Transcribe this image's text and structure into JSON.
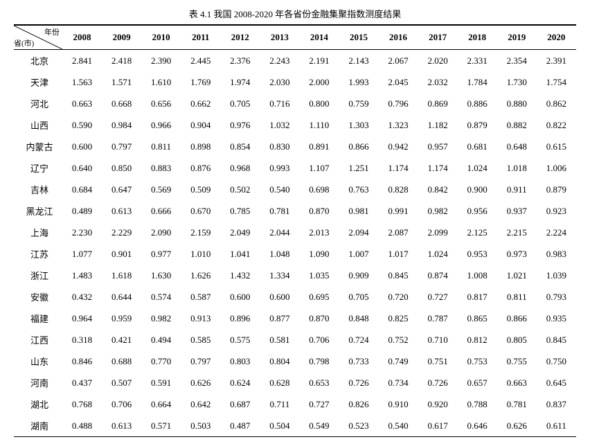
{
  "title": "表 4.1  我国 2008-2020 年各省份金融集聚指数测度结果",
  "corner_top": "年份",
  "corner_bottom": "省(市)",
  "years": [
    "2008",
    "2009",
    "2010",
    "2011",
    "2012",
    "2013",
    "2014",
    "2015",
    "2016",
    "2017",
    "2018",
    "2019",
    "2020"
  ],
  "rows": [
    {
      "label": "北京",
      "v": [
        "2.841",
        "2.418",
        "2.390",
        "2.445",
        "2.376",
        "2.243",
        "2.191",
        "2.143",
        "2.067",
        "2.020",
        "2.331",
        "2.354",
        "2.391"
      ]
    },
    {
      "label": "天津",
      "v": [
        "1.563",
        "1.571",
        "1.610",
        "1.769",
        "1.974",
        "2.030",
        "2.000",
        "1.993",
        "2.045",
        "2.032",
        "1.784",
        "1.730",
        "1.754"
      ]
    },
    {
      "label": "河北",
      "v": [
        "0.663",
        "0.668",
        "0.656",
        "0.662",
        "0.705",
        "0.716",
        "0.800",
        "0.759",
        "0.796",
        "0.869",
        "0.886",
        "0.880",
        "0.862"
      ]
    },
    {
      "label": "山西",
      "v": [
        "0.590",
        "0.984",
        "0.966",
        "0.904",
        "0.976",
        "1.032",
        "1.110",
        "1.303",
        "1.323",
        "1.182",
        "0.879",
        "0.882",
        "0.822"
      ]
    },
    {
      "label": "内蒙古",
      "v": [
        "0.600",
        "0.797",
        "0.811",
        "0.898",
        "0.854",
        "0.830",
        "0.891",
        "0.866",
        "0.942",
        "0.957",
        "0.681",
        "0.648",
        "0.615"
      ]
    },
    {
      "label": "辽宁",
      "v": [
        "0.640",
        "0.850",
        "0.883",
        "0.876",
        "0.968",
        "0.993",
        "1.107",
        "1.251",
        "1.174",
        "1.174",
        "1.024",
        "1.018",
        "1.006"
      ]
    },
    {
      "label": "吉林",
      "v": [
        "0.684",
        "0.647",
        "0.569",
        "0.509",
        "0.502",
        "0.540",
        "0.698",
        "0.763",
        "0.828",
        "0.842",
        "0.900",
        "0.911",
        "0.879"
      ]
    },
    {
      "label": "黑龙江",
      "v": [
        "0.489",
        "0.613",
        "0.666",
        "0.670",
        "0.785",
        "0.781",
        "0.870",
        "0.981",
        "0.991",
        "0.982",
        "0.956",
        "0.937",
        "0.923"
      ]
    },
    {
      "label": "上海",
      "v": [
        "2.230",
        "2.229",
        "2.090",
        "2.159",
        "2.049",
        "2.044",
        "2.013",
        "2.094",
        "2.087",
        "2.099",
        "2.125",
        "2.215",
        "2.224"
      ]
    },
    {
      "label": "江苏",
      "v": [
        "1.077",
        "0.901",
        "0.977",
        "1.010",
        "1.041",
        "1.048",
        "1.090",
        "1.007",
        "1.017",
        "1.024",
        "0.953",
        "0.973",
        "0.983"
      ]
    },
    {
      "label": "浙江",
      "v": [
        "1.483",
        "1.618",
        "1.630",
        "1.626",
        "1.432",
        "1.334",
        "1.035",
        "0.909",
        "0.845",
        "0.874",
        "1.008",
        "1.021",
        "1.039"
      ]
    },
    {
      "label": "安徽",
      "v": [
        "0.432",
        "0.644",
        "0.574",
        "0.587",
        "0.600",
        "0.600",
        "0.695",
        "0.705",
        "0.720",
        "0.727",
        "0.817",
        "0.811",
        "0.793"
      ]
    },
    {
      "label": "福建",
      "v": [
        "0.964",
        "0.959",
        "0.982",
        "0.913",
        "0.896",
        "0.877",
        "0.870",
        "0.848",
        "0.825",
        "0.787",
        "0.865",
        "0.866",
        "0.935"
      ]
    },
    {
      "label": "江西",
      "v": [
        "0.318",
        "0.421",
        "0.494",
        "0.585",
        "0.575",
        "0.581",
        "0.706",
        "0.724",
        "0.752",
        "0.710",
        "0.812",
        "0.805",
        "0.845"
      ]
    },
    {
      "label": "山东",
      "v": [
        "0.846",
        "0.688",
        "0.770",
        "0.797",
        "0.803",
        "0.804",
        "0.798",
        "0.733",
        "0.749",
        "0.751",
        "0.753",
        "0.755",
        "0.750"
      ]
    },
    {
      "label": "河南",
      "v": [
        "0.437",
        "0.507",
        "0.591",
        "0.626",
        "0.624",
        "0.628",
        "0.653",
        "0.726",
        "0.734",
        "0.726",
        "0.657",
        "0.663",
        "0.645"
      ]
    },
    {
      "label": "湖北",
      "v": [
        "0.768",
        "0.706",
        "0.664",
        "0.642",
        "0.687",
        "0.711",
        "0.727",
        "0.826",
        "0.910",
        "0.920",
        "0.788",
        "0.781",
        "0.837"
      ]
    },
    {
      "label": "湖南",
      "v": [
        "0.488",
        "0.613",
        "0.571",
        "0.503",
        "0.487",
        "0.504",
        "0.549",
        "0.523",
        "0.540",
        "0.617",
        "0.646",
        "0.626",
        "0.611"
      ]
    }
  ]
}
